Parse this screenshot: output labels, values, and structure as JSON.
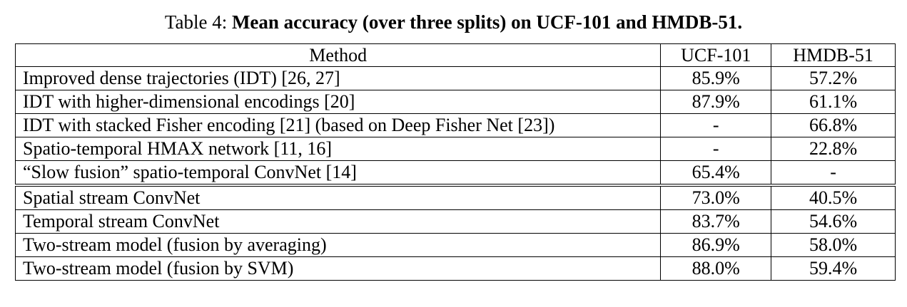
{
  "caption": {
    "prefix": "Table 4: ",
    "title": "Mean accuracy (over three splits) on UCF-101 and HMDB-51."
  },
  "table": {
    "headers": [
      "Method",
      "UCF-101",
      "HMDB-51"
    ],
    "rows": [
      {
        "method": "Improved dense trajectories (IDT) [26, 27]",
        "ucf": "85.9%",
        "hmdb": "57.2%",
        "ucf_bold": false,
        "hmdb_bold": false
      },
      {
        "method": "IDT with higher-dimensional encodings [20]",
        "ucf": "87.9%",
        "hmdb": "61.1%",
        "ucf_bold": true,
        "hmdb_bold": false
      },
      {
        "method": "IDT with stacked Fisher encoding [21] (based on Deep Fisher Net [23])",
        "ucf": "-",
        "hmdb": "66.8%",
        "ucf_bold": false,
        "hmdb_bold": true
      },
      {
        "method": "Spatio-temporal HMAX network [11, 16]",
        "ucf": "-",
        "hmdb": "22.8%",
        "ucf_bold": false,
        "hmdb_bold": false
      },
      {
        "method": "“Slow fusion” spatio-temporal ConvNet [14]",
        "ucf": "65.4%",
        "hmdb": "-",
        "ucf_bold": false,
        "hmdb_bold": false
      },
      {
        "method": "Spatial stream ConvNet",
        "ucf": "73.0%",
        "hmdb": "40.5%",
        "ucf_bold": false,
        "hmdb_bold": false
      },
      {
        "method": "Temporal stream ConvNet",
        "ucf": "83.7%",
        "hmdb": "54.6%",
        "ucf_bold": false,
        "hmdb_bold": false
      },
      {
        "method": "Two-stream model (fusion by averaging)",
        "ucf": "86.9%",
        "hmdb": "58.0%",
        "ucf_bold": false,
        "hmdb_bold": false
      },
      {
        "method": "Two-stream model (fusion by SVM)",
        "ucf": "88.0%",
        "hmdb": "59.4%",
        "ucf_bold": true,
        "hmdb_bold": true
      }
    ]
  }
}
